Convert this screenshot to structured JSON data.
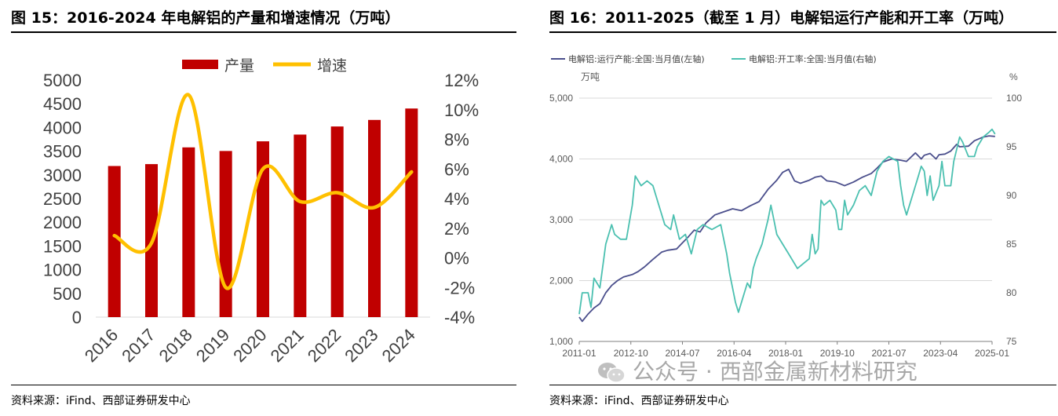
{
  "left": {
    "title": "图 15：2016-2024 年电解铝的产量和增速情况（万吨）",
    "source": "资料来源：iFind、西部证券研发中心"
  },
  "right": {
    "title": "图 16：2011-2025（截至 1 月）电解铝运行产能和开工率（万吨）",
    "source": "资料来源：iFind、西部证券研发中心",
    "unit_left": "万吨",
    "unit_right": "%"
  },
  "watermark": "公众号 · 西部金属新材料研究",
  "chart_data": [
    {
      "type": "bar",
      "title": "",
      "categories": [
        "2016",
        "2017",
        "2018",
        "2019",
        "2020",
        "2021",
        "2022",
        "2023",
        "2024"
      ],
      "series": [
        {
          "name": "产量",
          "type": "bar",
          "axis": "left",
          "color": "#c00000",
          "values": [
            3187,
            3227,
            3580,
            3504,
            3708,
            3850,
            4021,
            4159,
            4400
          ]
        },
        {
          "name": "增速",
          "type": "line",
          "axis": "right",
          "color": "#ffc000",
          "values": [
            1.5,
            1.0,
            11.0,
            -2.0,
            6.0,
            3.8,
            4.4,
            3.4,
            5.8
          ]
        }
      ],
      "y_left": {
        "min": 0,
        "max": 5000,
        "step": 500,
        "ticks": [
          "0",
          "500",
          "1000",
          "1500",
          "2000",
          "2500",
          "3000",
          "3500",
          "4000",
          "4500",
          "5000"
        ]
      },
      "y_right": {
        "min": -4,
        "max": 12,
        "step": 2,
        "ticks": [
          "-4%",
          "-2%",
          "0%",
          "2%",
          "4%",
          "6%",
          "8%",
          "10%",
          "12%"
        ]
      },
      "legend": "top",
      "grid": false
    },
    {
      "type": "line",
      "title": "",
      "x_ticks": [
        "2011-01",
        "2012-10",
        "2014-07",
        "2016-04",
        "2018-01",
        "2019-10",
        "2021-07",
        "2023-04",
        "2025-01"
      ],
      "x_range": [
        2011.0,
        2025.0
      ],
      "y_left": {
        "min": 1000,
        "max": 5000,
        "ticks": [
          "1,000",
          "2,000",
          "3,000",
          "4,000",
          "5,000"
        ]
      },
      "y_right": {
        "min": 75,
        "max": 100,
        "ticks": [
          "75",
          "80",
          "85",
          "90",
          "95",
          "100"
        ]
      },
      "legend": "top-left",
      "grid": true,
      "series": [
        {
          "name": "电解铝:运行产能:全国:当月值(左轴)",
          "axis": "left",
          "color": "#4b4f8c",
          "points": [
            [
              2011.0,
              1400
            ],
            [
              2011.1,
              1330
            ],
            [
              2011.3,
              1450
            ],
            [
              2011.5,
              1550
            ],
            [
              2011.7,
              1620
            ],
            [
              2011.9,
              1800
            ],
            [
              2012.1,
              1920
            ],
            [
              2012.3,
              2000
            ],
            [
              2012.5,
              2060
            ],
            [
              2012.8,
              2100
            ],
            [
              2013.0,
              2150
            ],
            [
              2013.2,
              2220
            ],
            [
              2013.5,
              2350
            ],
            [
              2013.8,
              2470
            ],
            [
              2014.0,
              2500
            ],
            [
              2014.3,
              2520
            ],
            [
              2014.5,
              2620
            ],
            [
              2014.7,
              2720
            ],
            [
              2014.9,
              2830
            ],
            [
              2015.1,
              2800
            ],
            [
              2015.3,
              2950
            ],
            [
              2015.6,
              3080
            ],
            [
              2015.9,
              3130
            ],
            [
              2016.2,
              3180
            ],
            [
              2016.5,
              3150
            ],
            [
              2016.8,
              3230
            ],
            [
              2017.1,
              3300
            ],
            [
              2017.4,
              3500
            ],
            [
              2017.7,
              3650
            ],
            [
              2017.9,
              3780
            ],
            [
              2018.1,
              3830
            ],
            [
              2018.3,
              3640
            ],
            [
              2018.5,
              3600
            ],
            [
              2018.8,
              3650
            ],
            [
              2019.0,
              3700
            ],
            [
              2019.2,
              3720
            ],
            [
              2019.4,
              3640
            ],
            [
              2019.7,
              3620
            ],
            [
              2020.0,
              3560
            ],
            [
              2020.3,
              3620
            ],
            [
              2020.6,
              3700
            ],
            [
              2020.9,
              3760
            ],
            [
              2021.1,
              3850
            ],
            [
              2021.3,
              3950
            ],
            [
              2021.6,
              4000
            ],
            [
              2021.9,
              3980
            ],
            [
              2022.1,
              3960
            ],
            [
              2022.4,
              4100
            ],
            [
              2022.6,
              4000
            ],
            [
              2022.7,
              4060
            ],
            [
              2022.9,
              4090
            ],
            [
              2023.1,
              4000
            ],
            [
              2023.2,
              4070
            ],
            [
              2023.4,
              4080
            ],
            [
              2023.6,
              4130
            ],
            [
              2023.8,
              4240
            ],
            [
              2023.9,
              4200
            ],
            [
              2024.2,
              4210
            ],
            [
              2024.4,
              4300
            ],
            [
              2024.7,
              4360
            ],
            [
              2024.9,
              4380
            ],
            [
              2025.1,
              4370
            ]
          ]
        },
        {
          "name": "电解铝:开工率:全国:当月值(右轴)",
          "axis": "right",
          "color": "#4bc0b0",
          "points": [
            [
              2011.0,
              77.8
            ],
            [
              2011.1,
              80.0
            ],
            [
              2011.3,
              80.0
            ],
            [
              2011.4,
              78.5
            ],
            [
              2011.5,
              81.5
            ],
            [
              2011.7,
              80.5
            ],
            [
              2011.9,
              85.0
            ],
            [
              2012.1,
              87.0
            ],
            [
              2012.2,
              86.0
            ],
            [
              2012.4,
              85.5
            ],
            [
              2012.6,
              85.5
            ],
            [
              2012.8,
              89.0
            ],
            [
              2012.9,
              92.0
            ],
            [
              2013.1,
              91.0
            ],
            [
              2013.3,
              91.5
            ],
            [
              2013.5,
              91.0
            ],
            [
              2013.7,
              89.0
            ],
            [
              2013.9,
              87.0
            ],
            [
              2014.1,
              86.5
            ],
            [
              2014.2,
              88.0
            ],
            [
              2014.4,
              85.5
            ],
            [
              2014.6,
              86.0
            ],
            [
              2014.8,
              84.0
            ],
            [
              2015.0,
              86.5
            ],
            [
              2015.2,
              87.0
            ],
            [
              2015.5,
              86.5
            ],
            [
              2015.8,
              87.0
            ],
            [
              2016.0,
              84.0
            ],
            [
              2016.1,
              82.0
            ],
            [
              2016.3,
              79.0
            ],
            [
              2016.4,
              78.0
            ],
            [
              2016.6,
              80.0
            ],
            [
              2016.7,
              81.0
            ],
            [
              2016.8,
              80.5
            ],
            [
              2016.9,
              82.5
            ],
            [
              2017.0,
              83.5
            ],
            [
              2017.2,
              85.0
            ],
            [
              2017.4,
              87.5
            ],
            [
              2017.5,
              89.0
            ],
            [
              2017.6,
              87.5
            ],
            [
              2017.7,
              86.0
            ],
            [
              2017.9,
              85.0
            ],
            [
              2018.1,
              84.0
            ],
            [
              2018.2,
              83.5
            ],
            [
              2018.4,
              82.5
            ],
            [
              2018.6,
              83.0
            ],
            [
              2018.8,
              83.5
            ],
            [
              2018.9,
              86.0
            ],
            [
              2019.0,
              84.0
            ],
            [
              2019.1,
              84.5
            ],
            [
              2019.2,
              89.5
            ],
            [
              2019.3,
              89.0
            ],
            [
              2019.5,
              89.5
            ],
            [
              2019.7,
              88.5
            ],
            [
              2019.8,
              86.5
            ],
            [
              2019.9,
              86.5
            ],
            [
              2020.0,
              89.5
            ],
            [
              2020.1,
              88.0
            ],
            [
              2020.3,
              89.0
            ],
            [
              2020.5,
              90.5
            ],
            [
              2020.7,
              91.0
            ],
            [
              2020.9,
              90.0
            ],
            [
              2021.1,
              92.5
            ],
            [
              2021.3,
              93.5
            ],
            [
              2021.5,
              94.0
            ],
            [
              2021.8,
              93.5
            ],
            [
              2021.9,
              91.0
            ],
            [
              2022.0,
              89.0
            ],
            [
              2022.1,
              88.0
            ],
            [
              2022.3,
              90.0
            ],
            [
              2022.5,
              92.0
            ],
            [
              2022.6,
              93.0
            ],
            [
              2022.7,
              92.5
            ],
            [
              2022.8,
              90.0
            ],
            [
              2022.9,
              92.0
            ],
            [
              2023.0,
              89.5
            ],
            [
              2023.2,
              91.0
            ],
            [
              2023.3,
              93.5
            ],
            [
              2023.4,
              91.0
            ],
            [
              2023.6,
              91.0
            ],
            [
              2023.7,
              93.5
            ],
            [
              2023.9,
              96.0
            ],
            [
              2024.0,
              95.5
            ],
            [
              2024.2,
              94.0
            ],
            [
              2024.4,
              94.0
            ],
            [
              2024.5,
              95.0
            ],
            [
              2024.7,
              96.0
            ],
            [
              2024.9,
              96.5
            ],
            [
              2025.0,
              96.8
            ],
            [
              2025.1,
              96.3
            ]
          ]
        }
      ]
    }
  ]
}
